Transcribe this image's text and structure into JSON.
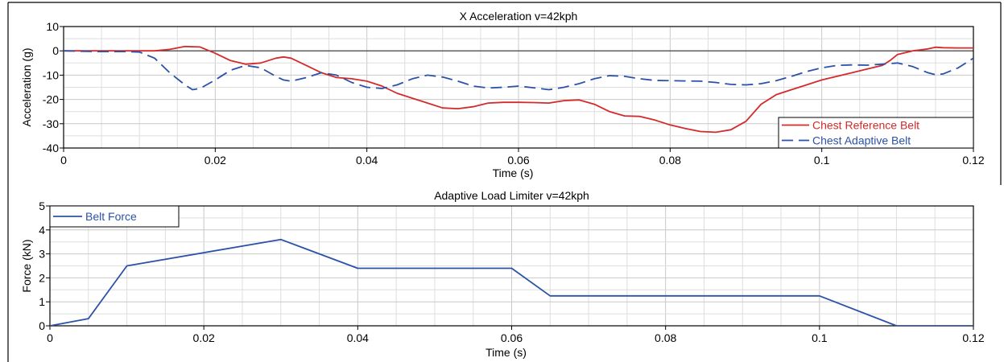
{
  "chart_data": [
    {
      "type": "line",
      "title": "X Acceleration v=42kph",
      "xlabel": "Time (s)",
      "ylabel": "Acceleration (g)",
      "xlim": [
        0,
        0.12
      ],
      "ylim": [
        -40,
        10
      ],
      "xticks": [
        0,
        0.02,
        0.04,
        0.06,
        0.08,
        0.1,
        0.12
      ],
      "xtick_labels": [
        "0",
        "0.02",
        "0.04",
        "0.06",
        "0.08",
        "0.1",
        "0.12"
      ],
      "yticks": [
        -40,
        -30,
        -20,
        -10,
        0,
        10
      ],
      "ytick_labels": [
        "-40",
        "-30",
        "-20",
        "-10",
        "0",
        "10"
      ],
      "grid": true,
      "zero_line": true,
      "legend_position": "bottom-right",
      "series": [
        {
          "name": "Chest Reference Belt",
          "color": "#d42a2a",
          "dash": "solid",
          "points": [
            [
              0,
              0
            ],
            [
              0.005,
              0
            ],
            [
              0.01,
              0
            ],
            [
              0.012,
              0
            ],
            [
              0.014,
              0.6
            ],
            [
              0.016,
              1.8
            ],
            [
              0.018,
              1.6
            ],
            [
              0.02,
              -1
            ],
            [
              0.022,
              -4
            ],
            [
              0.024,
              -5.5
            ],
            [
              0.026,
              -5
            ],
            [
              0.028,
              -3
            ],
            [
              0.029,
              -2.5
            ],
            [
              0.03,
              -3
            ],
            [
              0.032,
              -6
            ],
            [
              0.034,
              -9
            ],
            [
              0.036,
              -11
            ],
            [
              0.038,
              -11.5
            ],
            [
              0.04,
              -12.5
            ],
            [
              0.042,
              -14.5
            ],
            [
              0.044,
              -17.5
            ],
            [
              0.046,
              -19.5
            ],
            [
              0.048,
              -21.5
            ],
            [
              0.05,
              -23.5
            ],
            [
              0.052,
              -23.8
            ],
            [
              0.054,
              -23
            ],
            [
              0.056,
              -21.5
            ],
            [
              0.058,
              -21.2
            ],
            [
              0.06,
              -21.2
            ],
            [
              0.062,
              -21.3
            ],
            [
              0.064,
              -21.5
            ],
            [
              0.066,
              -20.5
            ],
            [
              0.068,
              -20.2
            ],
            [
              0.07,
              -22
            ],
            [
              0.072,
              -25
            ],
            [
              0.074,
              -26.8
            ],
            [
              0.076,
              -27
            ],
            [
              0.078,
              -28.5
            ],
            [
              0.08,
              -30.5
            ],
            [
              0.082,
              -32
            ],
            [
              0.084,
              -33.2
            ],
            [
              0.086,
              -33.5
            ],
            [
              0.088,
              -32.5
            ],
            [
              0.09,
              -29
            ],
            [
              0.092,
              -22
            ],
            [
              0.094,
              -18
            ],
            [
              0.096,
              -16
            ],
            [
              0.098,
              -14
            ],
            [
              0.1,
              -12
            ],
            [
              0.102,
              -10.5
            ],
            [
              0.104,
              -9
            ],
            [
              0.106,
              -7.5
            ],
            [
              0.108,
              -6
            ],
            [
              0.109,
              -4
            ],
            [
              0.11,
              -1.5
            ],
            [
              0.112,
              0
            ],
            [
              0.114,
              0.8
            ],
            [
              0.115,
              1.5
            ],
            [
              0.116,
              1.3
            ],
            [
              0.118,
              1.2
            ],
            [
              0.12,
              1.2
            ]
          ]
        },
        {
          "name": "Chest Adaptive Belt",
          "color": "#2b52a8",
          "dash": "dashed",
          "points": [
            [
              0,
              0
            ],
            [
              0.004,
              -0.3
            ],
            [
              0.008,
              -0.3
            ],
            [
              0.01,
              -0.5
            ],
            [
              0.012,
              -3
            ],
            [
              0.014,
              -9
            ],
            [
              0.016,
              -14
            ],
            [
              0.017,
              -16
            ],
            [
              0.018,
              -15.5
            ],
            [
              0.02,
              -12
            ],
            [
              0.022,
              -8
            ],
            [
              0.024,
              -6
            ],
            [
              0.026,
              -7
            ],
            [
              0.028,
              -10.5
            ],
            [
              0.029,
              -12
            ],
            [
              0.03,
              -12.5
            ],
            [
              0.032,
              -11
            ],
            [
              0.034,
              -9
            ],
            [
              0.036,
              -10
            ],
            [
              0.038,
              -13
            ],
            [
              0.04,
              -15
            ],
            [
              0.042,
              -15.5
            ],
            [
              0.044,
              -14
            ],
            [
              0.046,
              -11.5
            ],
            [
              0.048,
              -10
            ],
            [
              0.05,
              -10.8
            ],
            [
              0.052,
              -12.5
            ],
            [
              0.054,
              -14.5
            ],
            [
              0.056,
              -15.3
            ],
            [
              0.058,
              -15
            ],
            [
              0.06,
              -14.5
            ],
            [
              0.062,
              -15.2
            ],
            [
              0.064,
              -16
            ],
            [
              0.066,
              -15
            ],
            [
              0.068,
              -13.5
            ],
            [
              0.07,
              -11.5
            ],
            [
              0.072,
              -10.2
            ],
            [
              0.074,
              -10.5
            ],
            [
              0.076,
              -11.5
            ],
            [
              0.078,
              -12.2
            ],
            [
              0.08,
              -12.3
            ],
            [
              0.082,
              -12.4
            ],
            [
              0.084,
              -12.5
            ],
            [
              0.086,
              -13
            ],
            [
              0.088,
              -13.8
            ],
            [
              0.09,
              -14
            ],
            [
              0.092,
              -13.5
            ],
            [
              0.094,
              -12.3
            ],
            [
              0.096,
              -10.5
            ],
            [
              0.098,
              -8.5
            ],
            [
              0.1,
              -7
            ],
            [
              0.102,
              -6
            ],
            [
              0.104,
              -5.8
            ],
            [
              0.106,
              -5.9
            ],
            [
              0.108,
              -5.5
            ],
            [
              0.11,
              -5
            ],
            [
              0.112,
              -6.5
            ],
            [
              0.114,
              -9
            ],
            [
              0.115,
              -9.8
            ],
            [
              0.116,
              -9.5
            ],
            [
              0.118,
              -7
            ],
            [
              0.12,
              -3
            ]
          ]
        }
      ]
    },
    {
      "type": "line",
      "title": "Adaptive Load Limiter v=42kph",
      "xlabel": "Time (s)",
      "ylabel": "Force (kN)",
      "xlim": [
        0,
        0.12
      ],
      "ylim": [
        0,
        5
      ],
      "xticks": [
        0,
        0.02,
        0.04,
        0.06,
        0.08,
        0.1,
        0.12
      ],
      "xtick_labels": [
        "0",
        "0.02",
        "0.04",
        "0.06",
        "0.08",
        "0.1",
        "0.12"
      ],
      "yticks": [
        0,
        1,
        2,
        3,
        4,
        5
      ],
      "ytick_labels": [
        "0",
        "1",
        "2",
        "3",
        "4",
        "5"
      ],
      "grid": true,
      "legend_position": "top-left",
      "series": [
        {
          "name": "Belt Force",
          "color": "#2b52a8",
          "dash": "solid",
          "points": [
            [
              0,
              0
            ],
            [
              0.005,
              0.3
            ],
            [
              0.01,
              2.5
            ],
            [
              0.03,
              3.6
            ],
            [
              0.04,
              2.4
            ],
            [
              0.06,
              2.4
            ],
            [
              0.065,
              1.25
            ],
            [
              0.1,
              1.25
            ],
            [
              0.11,
              0
            ],
            [
              0.12,
              0
            ]
          ]
        }
      ]
    }
  ]
}
